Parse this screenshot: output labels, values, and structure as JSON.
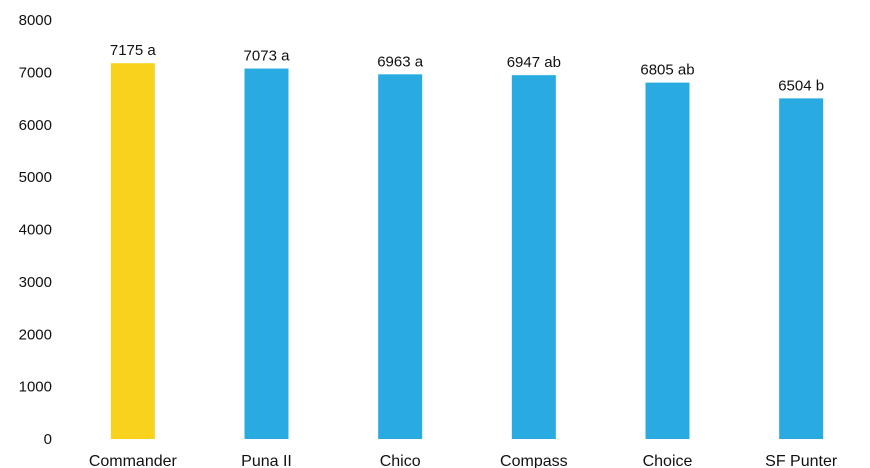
{
  "chart_data": {
    "type": "bar",
    "categories": [
      "Commander",
      "Puna II",
      "Chico",
      "Compass",
      "Choice",
      "SF Punter"
    ],
    "values": [
      7175,
      7073,
      6963,
      6947,
      6805,
      6504
    ],
    "data_labels": [
      "7175 a",
      "7073 a",
      "6963 a",
      "6947 ab",
      "6805 ab",
      "6504 b"
    ],
    "bar_colors": [
      "#F9D21E",
      "#29ABE2",
      "#29ABE2",
      "#29ABE2",
      "#29ABE2",
      "#29ABE2"
    ],
    "title": "",
    "xlabel": "",
    "ylabel": "",
    "ylim": [
      0,
      8000
    ],
    "yticks": [
      "0",
      "1000",
      "2000",
      "3000",
      "4000",
      "5000",
      "6000",
      "7000",
      "8000"
    ],
    "grid": false,
    "legend": "none"
  }
}
